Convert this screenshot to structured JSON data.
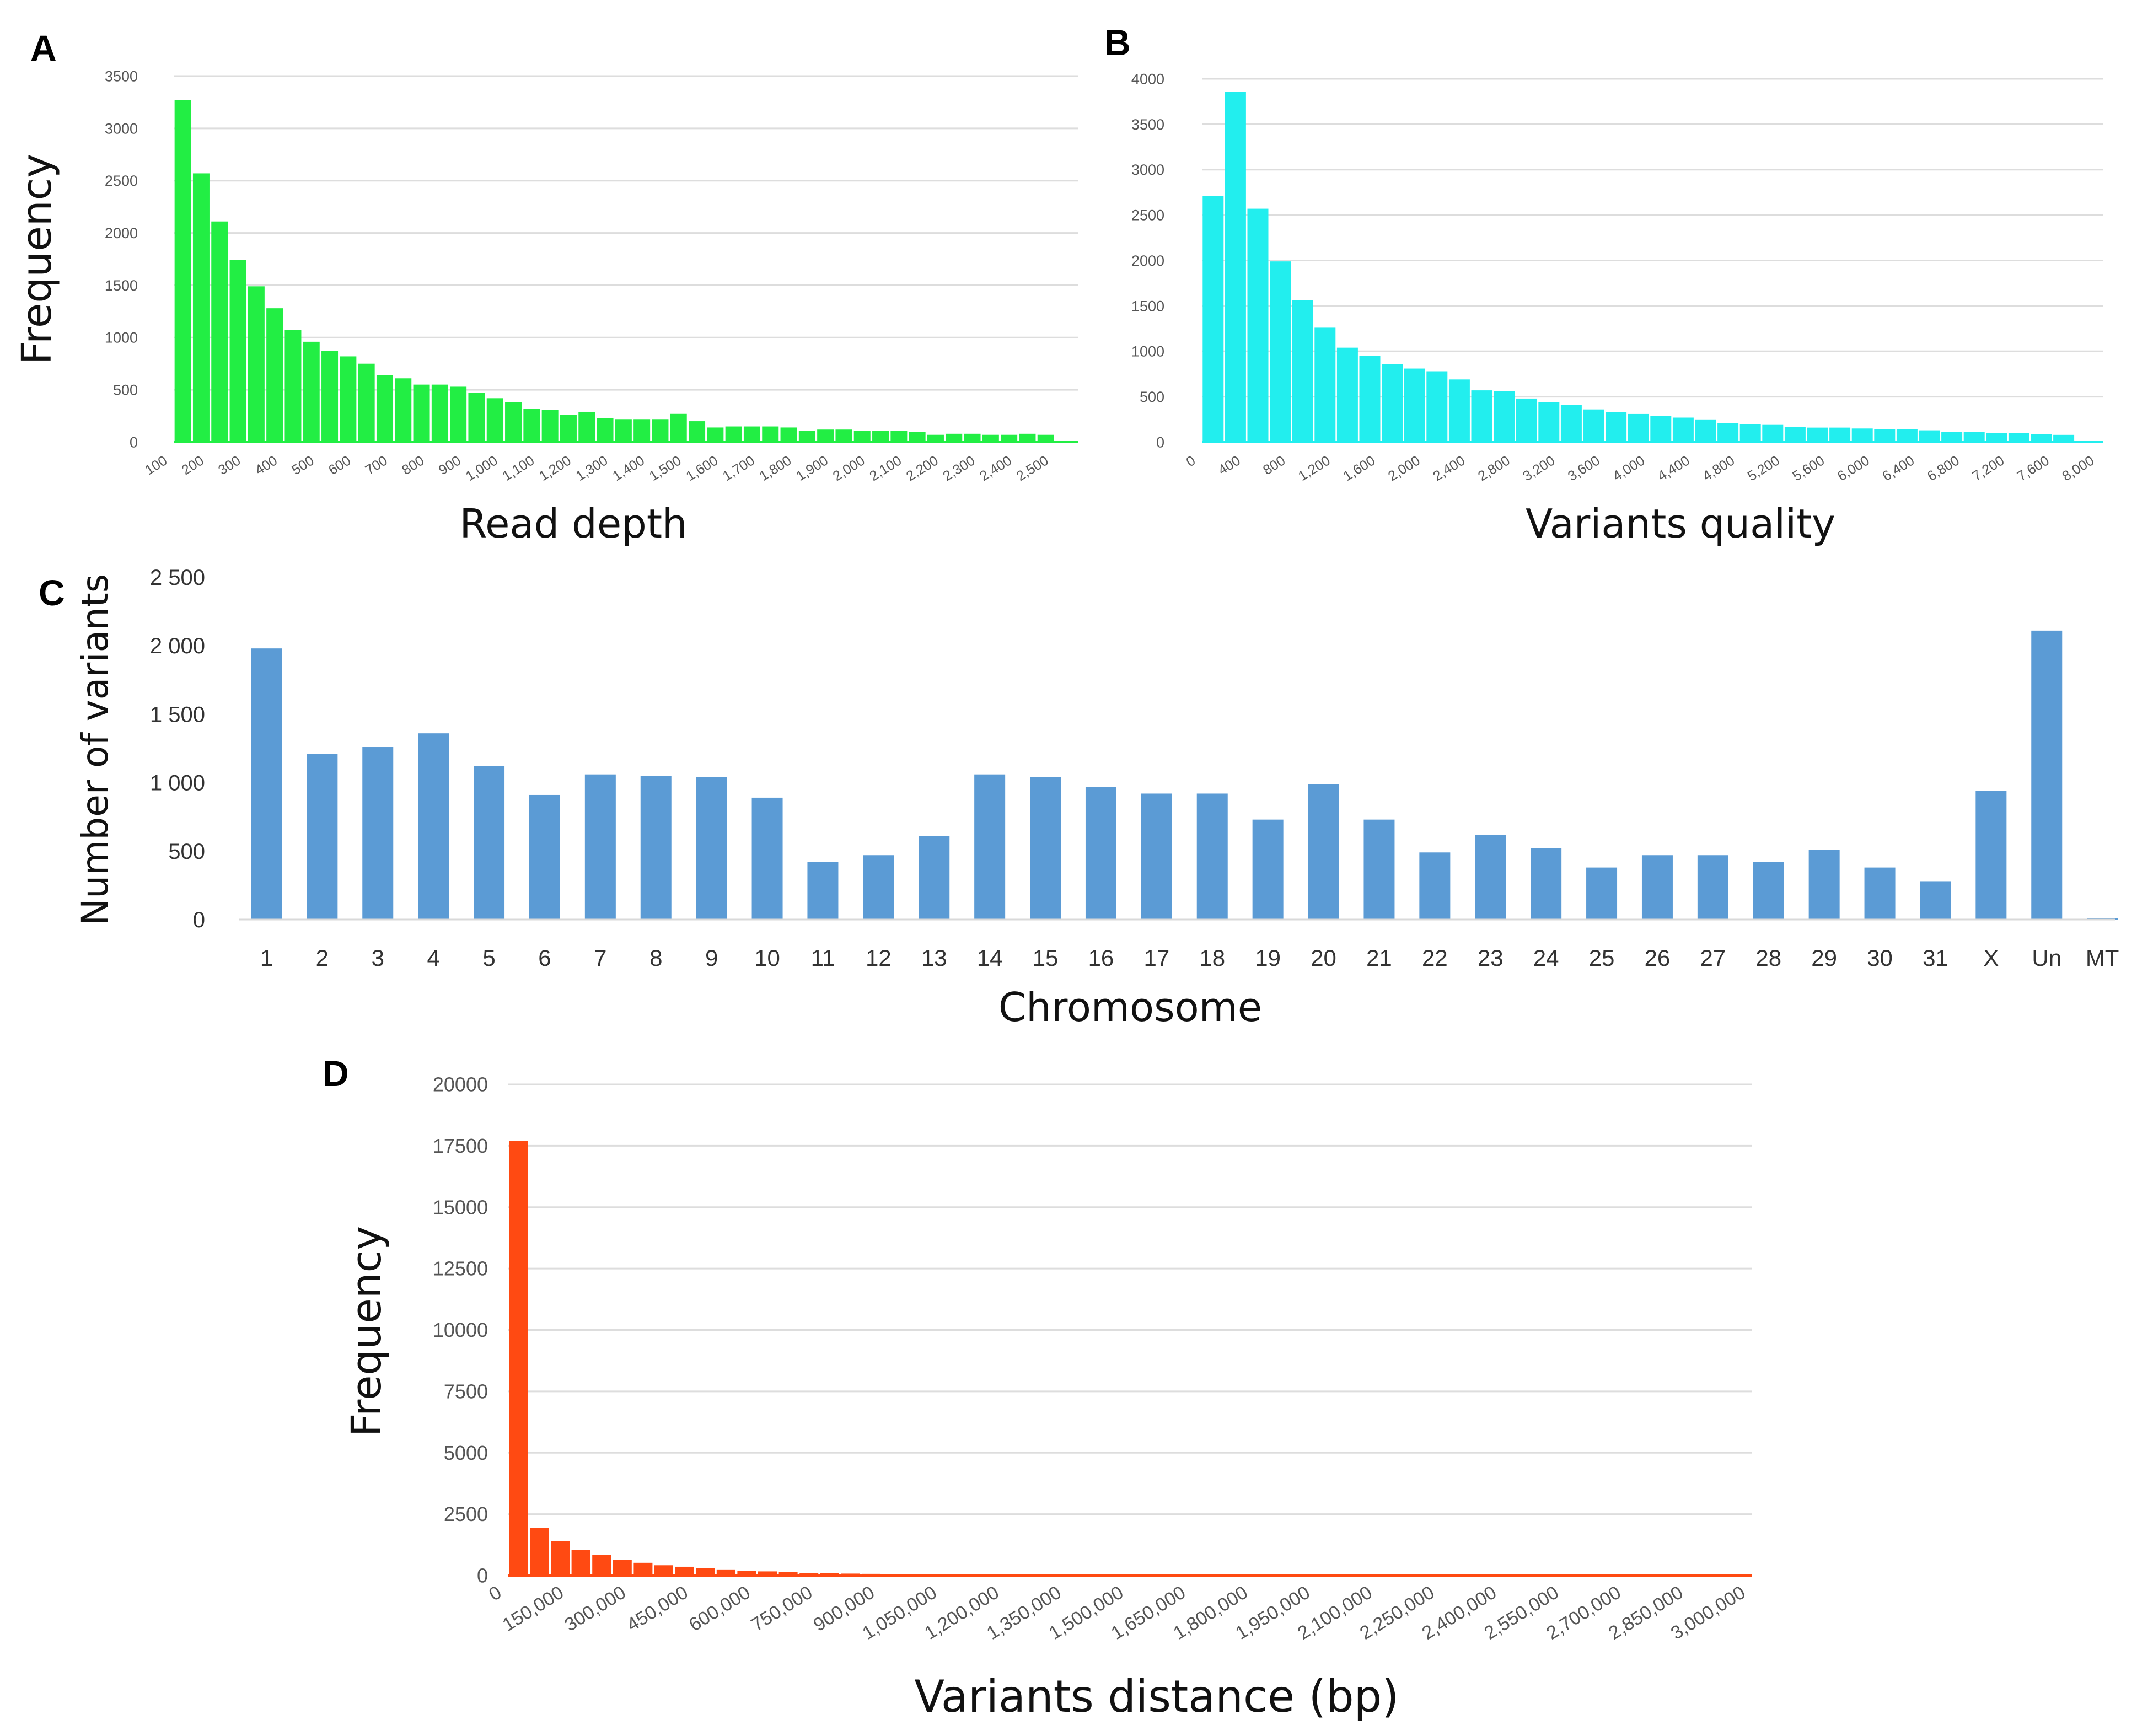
{
  "chart_data": [
    {
      "panel": "A",
      "type": "bar",
      "xlabel": "Read depth",
      "ylabel": "Frequency",
      "color": "#22ee44",
      "ylim": [
        0,
        3500
      ],
      "yticks": [
        "0",
        "500",
        "1000",
        "1500",
        "2000",
        "2500",
        "3000",
        "3500"
      ],
      "xticks": [
        "100",
        "200",
        "300",
        "400",
        "500",
        "600",
        "700",
        "800",
        "900",
        "1,000",
        "1,100",
        "1,200",
        "1,300",
        "1,400",
        "1,500",
        "1,600",
        "1,700",
        "1,800",
        "1,900",
        "2,000",
        "2,100",
        "2,200",
        "2,300",
        "2,400",
        "2,500"
      ],
      "values": [
        3270,
        2570,
        2110,
        1740,
        1490,
        1280,
        1070,
        960,
        870,
        820,
        750,
        640,
        610,
        550,
        550,
        530,
        470,
        420,
        380,
        320,
        310,
        260,
        290,
        230,
        220,
        220,
        220,
        270,
        200,
        140,
        150,
        150,
        150,
        140,
        110,
        120,
        120,
        110,
        110,
        110,
        100,
        70,
        80,
        80,
        70,
        70,
        80,
        70,
        10
      ]
    },
    {
      "panel": "B",
      "type": "bar",
      "xlabel": "Variants quality",
      "ylabel": "",
      "color": "#22eeee",
      "ylim": [
        0,
        4000
      ],
      "yticks": [
        "0",
        "500",
        "1000",
        "1500",
        "2000",
        "2500",
        "3000",
        "3500",
        "4000"
      ],
      "xticks": [
        "0",
        "400",
        "800",
        "1,200",
        "1,600",
        "2,000",
        "2,400",
        "2,800",
        "3,200",
        "3,600",
        "4,000",
        "4,400",
        "4,800",
        "5,200",
        "5,600",
        "6,000",
        "6,400",
        "6,800",
        "7,200",
        "7,600",
        "8,000"
      ],
      "values": [
        2710,
        3860,
        2570,
        1990,
        1560,
        1260,
        1040,
        950,
        860,
        810,
        780,
        690,
        570,
        560,
        480,
        440,
        410,
        360,
        330,
        310,
        290,
        270,
        250,
        210,
        200,
        190,
        170,
        160,
        160,
        150,
        140,
        140,
        130,
        110,
        110,
        100,
        100,
        90,
        80,
        10
      ]
    },
    {
      "panel": "C",
      "type": "bar",
      "xlabel": "Chromosome",
      "ylabel": "Number of variants",
      "color": "#5b9bd5",
      "ylim": [
        0,
        2500
      ],
      "yticks": [
        "0",
        "500",
        "1 000",
        "1 500",
        "2 000",
        "2 500"
      ],
      "categories": [
        "1",
        "2",
        "3",
        "4",
        "5",
        "6",
        "7",
        "8",
        "9",
        "10",
        "11",
        "12",
        "13",
        "14",
        "15",
        "16",
        "17",
        "18",
        "19",
        "20",
        "21",
        "22",
        "23",
        "24",
        "25",
        "26",
        "27",
        "28",
        "29",
        "30",
        "31",
        "X",
        "Un",
        "MT"
      ],
      "values": [
        1980,
        1210,
        1260,
        1360,
        1120,
        910,
        1060,
        1050,
        1040,
        890,
        420,
        470,
        610,
        1060,
        1040,
        970,
        920,
        920,
        730,
        990,
        730,
        490,
        620,
        520,
        380,
        470,
        470,
        420,
        510,
        380,
        280,
        940,
        2110,
        10
      ]
    },
    {
      "panel": "D",
      "type": "bar",
      "xlabel": "Variants distance (bp)",
      "ylabel": "Frequency",
      "color": "#ff4a12",
      "ylim": [
        0,
        20000
      ],
      "yticks": [
        "0",
        "2500",
        "5000",
        "7500",
        "10000",
        "12500",
        "15000",
        "17500",
        "20000"
      ],
      "xticks": [
        "0",
        "150,000",
        "300,000",
        "450,000",
        "600,000",
        "750,000",
        "900,000",
        "1,050,000",
        "1,200,000",
        "1,350,000",
        "1,500,000",
        "1,650,000",
        "1,800,000",
        "1,950,000",
        "2,100,000",
        "2,250,000",
        "2,400,000",
        "2,550,000",
        "2,700,000",
        "2,850,000",
        "3,000,000"
      ],
      "values": [
        17700,
        1950,
        1400,
        1050,
        850,
        650,
        520,
        420,
        360,
        300,
        250,
        200,
        170,
        140,
        110,
        90,
        80,
        70,
        60,
        50,
        40,
        30,
        20,
        20,
        15,
        10,
        10,
        10,
        8,
        8,
        6,
        6,
        5,
        5,
        5,
        4,
        4,
        4,
        3,
        3,
        3,
        3,
        3,
        2,
        2,
        2,
        2,
        2,
        2,
        2,
        2,
        2,
        2,
        2,
        2,
        2,
        2,
        2,
        2,
        1
      ]
    }
  ]
}
